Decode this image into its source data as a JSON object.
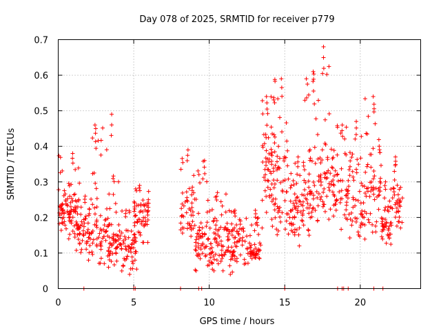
{
  "chart_data": {
    "type": "scatter",
    "title": "Day 078 of 2025, SRMTID for receiver p779",
    "xlabel": "GPS time / hours",
    "ylabel": "SRMTID / TECUs",
    "xlim": [
      0,
      24
    ],
    "ylim": [
      0,
      0.7
    ],
    "xticks": [
      0,
      5,
      10,
      15,
      20
    ],
    "xtick_labels": [
      "0",
      "5",
      "10",
      "15",
      "20"
    ],
    "yticks": [
      0,
      0.1,
      0.2,
      0.3,
      0.4,
      0.5,
      0.6,
      0.7
    ],
    "ytick_labels": [
      "0",
      "0.1",
      "0.2",
      "0.3",
      "0.4",
      "0.5",
      "0.6",
      "0.7"
    ],
    "grid": true,
    "marker": "plus",
    "color": "#ff0000",
    "series": [
      {
        "name": "SRMTID",
        "clusters": [
          {
            "x0": 0.0,
            "x1": 1.4,
            "ylo": 0.14,
            "yhi": 0.38,
            "ymed": 0.21,
            "n": 90
          },
          {
            "x0": 1.2,
            "x1": 2.1,
            "ylo": 0.08,
            "yhi": 0.26,
            "ymed": 0.15,
            "n": 45
          },
          {
            "x0": 2.0,
            "x1": 3.3,
            "ylo": 0.07,
            "yhi": 0.46,
            "ymed": 0.17,
            "n": 70
          },
          {
            "x0": 3.3,
            "x1": 4.1,
            "ylo": 0.06,
            "yhi": 0.49,
            "ymed": 0.12,
            "n": 55
          },
          {
            "x0": 4.1,
            "x1": 5.2,
            "ylo": 0.04,
            "yhi": 0.22,
            "ymed": 0.11,
            "n": 60
          },
          {
            "x0": 5.0,
            "x1": 6.0,
            "ylo": 0.13,
            "yhi": 0.29,
            "ymed": 0.2,
            "n": 55
          },
          {
            "x0": 8.1,
            "x1": 9.0,
            "ylo": 0.12,
            "yhi": 0.39,
            "ymed": 0.2,
            "n": 45
          },
          {
            "x0": 9.0,
            "x1": 10.0,
            "ylo": 0.05,
            "yhi": 0.36,
            "ymed": 0.13,
            "n": 60
          },
          {
            "x0": 10.0,
            "x1": 11.2,
            "ylo": 0.05,
            "yhi": 0.27,
            "ymed": 0.14,
            "n": 70
          },
          {
            "x0": 11.2,
            "x1": 12.5,
            "ylo": 0.04,
            "yhi": 0.22,
            "ymed": 0.12,
            "n": 70
          },
          {
            "x0": 12.5,
            "x1": 13.5,
            "ylo": 0.07,
            "yhi": 0.22,
            "ymed": 0.1,
            "n": 50
          },
          {
            "x0": 13.5,
            "x1": 14.3,
            "ylo": 0.17,
            "yhi": 0.54,
            "ymed": 0.32,
            "n": 60
          },
          {
            "x0": 14.3,
            "x1": 15.2,
            "ylo": 0.1,
            "yhi": 0.59,
            "ymed": 0.28,
            "n": 55
          },
          {
            "x0": 15.2,
            "x1": 16.2,
            "ylo": 0.12,
            "yhi": 0.37,
            "ymed": 0.2,
            "n": 55
          },
          {
            "x0": 16.2,
            "x1": 17.2,
            "ylo": 0.15,
            "yhi": 0.61,
            "ymed": 0.27,
            "n": 60
          },
          {
            "x0": 17.2,
            "x1": 18.2,
            "ylo": 0.19,
            "yhi": 0.68,
            "ymed": 0.3,
            "n": 55
          },
          {
            "x0": 18.2,
            "x1": 19.3,
            "ylo": 0.15,
            "yhi": 0.46,
            "ymed": 0.26,
            "n": 55
          },
          {
            "x0": 19.3,
            "x1": 20.3,
            "ylo": 0.1,
            "yhi": 0.47,
            "ymed": 0.24,
            "n": 50
          },
          {
            "x0": 20.3,
            "x1": 21.4,
            "ylo": 0.12,
            "yhi": 0.54,
            "ymed": 0.27,
            "n": 60
          },
          {
            "x0": 21.4,
            "x1": 22.1,
            "ylo": 0.11,
            "yhi": 0.3,
            "ymed": 0.17,
            "n": 45
          },
          {
            "x0": 22.1,
            "x1": 22.8,
            "ylo": 0.16,
            "yhi": 0.37,
            "ymed": 0.22,
            "n": 35
          }
        ],
        "zero_points_x": [
          1.7,
          5.0,
          5.1,
          8.1,
          9.3,
          9.5,
          15.0,
          18.5,
          18.8,
          18.9,
          19.2,
          20.9,
          21.5
        ]
      }
    ]
  }
}
